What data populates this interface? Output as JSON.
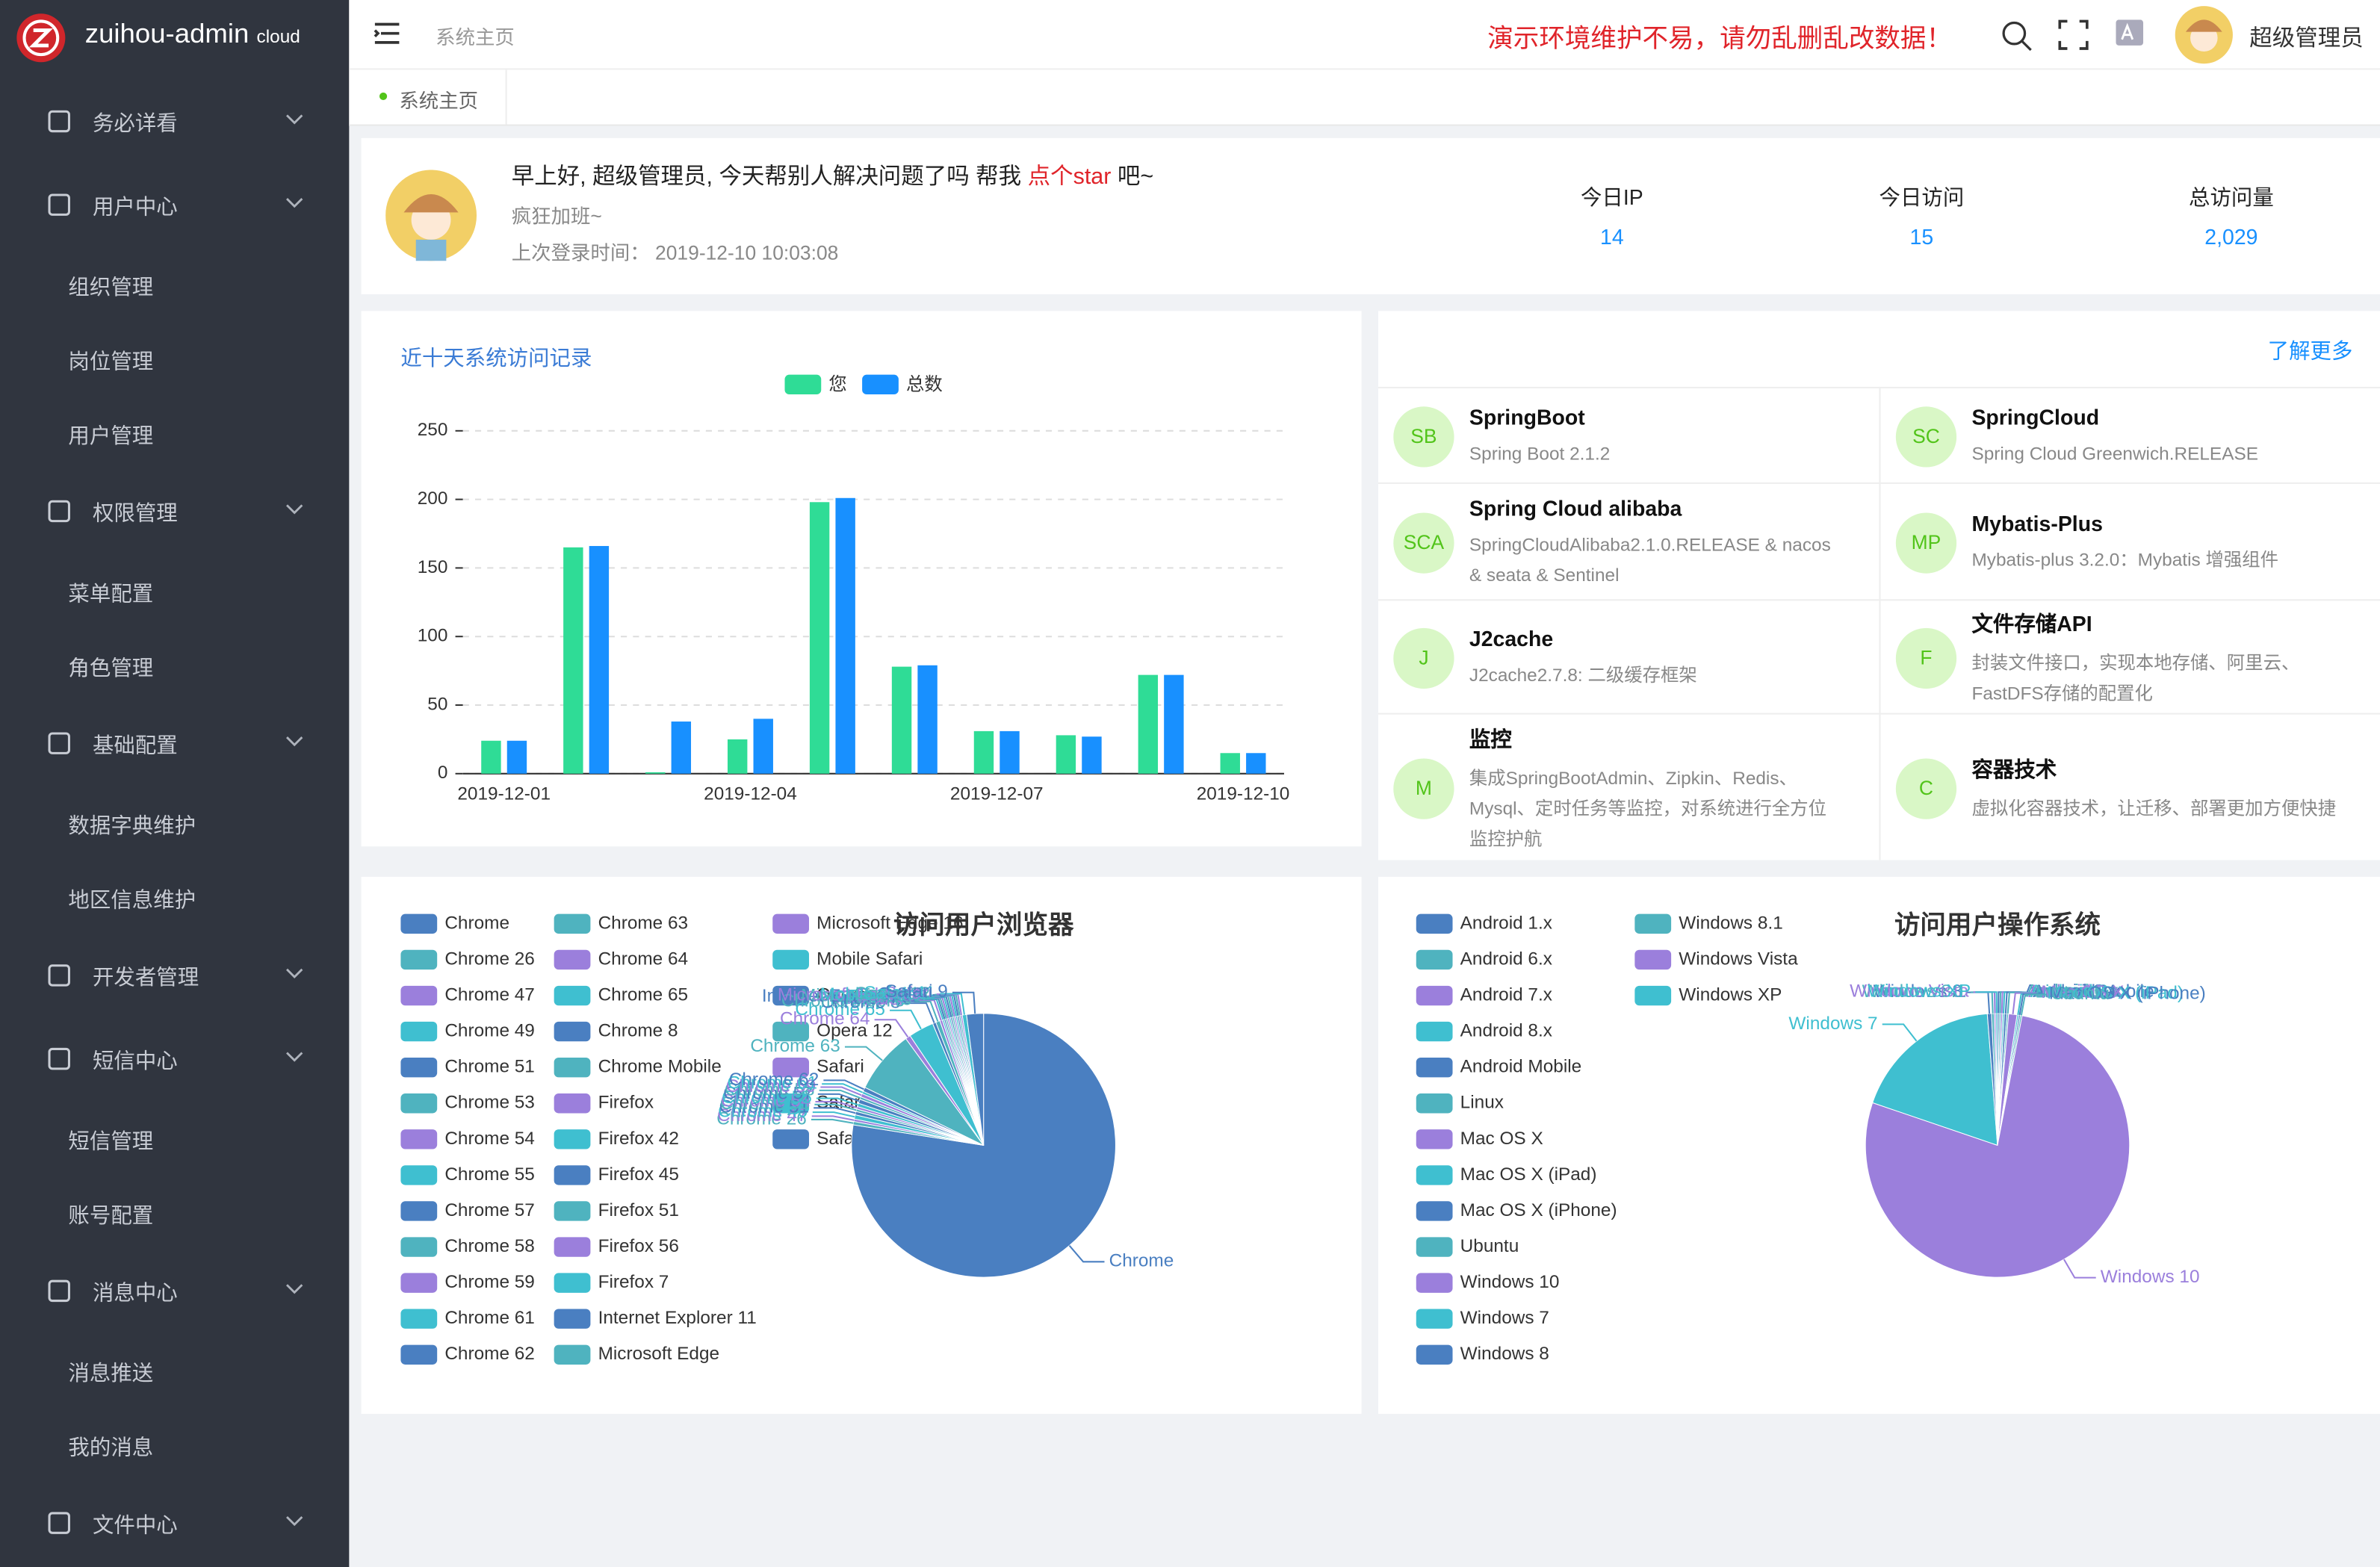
{
  "sidebar": {
    "logo": "zuihou-admin",
    "logo_sub": "cloud",
    "menu": [
      {
        "label": "务必详看",
        "children": []
      },
      {
        "label": "用户中心",
        "children": [
          "组织管理",
          "岗位管理",
          "用户管理"
        ]
      },
      {
        "label": "权限管理",
        "children": [
          "菜单配置",
          "角色管理"
        ]
      },
      {
        "label": "基础配置",
        "children": [
          "数据字典维护",
          "地区信息维护"
        ]
      },
      {
        "label": "开发者管理",
        "children": []
      },
      {
        "label": "短信中心",
        "children": [
          "短信管理",
          "账号配置"
        ]
      },
      {
        "label": "消息中心",
        "children": [
          "消息推送",
          "我的消息"
        ]
      },
      {
        "label": "文件中心",
        "children": []
      }
    ]
  },
  "header": {
    "breadcrumb": "系统主页",
    "notice": "演示环境维护不易，请勿乱删乱改数据！",
    "user": "超级管理员"
  },
  "tabs": [
    "系统主页"
  ],
  "welcome": {
    "greeting": "早上好, 超级管理员, 今天帮别人解决问题了吗 帮我 ",
    "link": "点个star",
    "greeting_end": " 吧~",
    "motto": "疯狂加班~",
    "last_login_label": "上次登录时间：",
    "last_login": "2019-12-10 10:03:08"
  },
  "stats": [
    {
      "label": "今日IP",
      "value": "14"
    },
    {
      "label": "今日访问",
      "value": "15"
    },
    {
      "label": "总访问量",
      "value": "2,029"
    }
  ],
  "tech": {
    "more": "了解更多",
    "items": [
      {
        "badge": "SB",
        "title": "SpringBoot",
        "desc": "Spring Boot 2.1.2"
      },
      {
        "badge": "SC",
        "title": "SpringCloud",
        "desc": "Spring Cloud Greenwich.RELEASE"
      },
      {
        "badge": "SCA",
        "title": "Spring Cloud alibaba",
        "desc": "SpringCloudAlibaba2.1.0.RELEASE & nacos & seata & Sentinel"
      },
      {
        "badge": "MP",
        "title": "Mybatis-Plus",
        "desc": "Mybatis-plus 3.2.0：Mybatis 增强组件"
      },
      {
        "badge": "J",
        "title": "J2cache",
        "desc": "J2cache2.7.8: 二级缓存框架"
      },
      {
        "badge": "F",
        "title": "文件存储API",
        "desc": "封装文件接口，实现本地存储、阿里云、FastDFS存储的配置化"
      },
      {
        "badge": "M",
        "title": "监控",
        "desc": "集成SpringBootAdmin、Zipkin、Redis、Mysql、定时任务等监控，对系统进行全方位监控护航"
      },
      {
        "badge": "C",
        "title": "容器技术",
        "desc": "虚拟化容器技术，让迁移、部署更加方便快捷"
      }
    ]
  },
  "chart_data": [
    {
      "type": "bar",
      "title": "近十天系统访问记录",
      "categories": [
        "2019-12-01",
        null,
        null,
        "2019-12-04",
        null,
        null,
        "2019-12-07",
        null,
        null,
        "2019-12-10"
      ],
      "series": [
        {
          "name": "您",
          "color": "#2fdc96",
          "values": [
            24,
            165,
            1,
            25,
            198,
            78,
            31,
            28,
            72,
            15
          ]
        },
        {
          "name": "总数",
          "color": "#1890ff",
          "values": [
            24,
            166,
            38,
            40,
            201,
            79,
            31,
            27,
            72,
            15
          ]
        }
      ],
      "ylim": [
        0,
        250
      ],
      "yticks": [
        0,
        50,
        100,
        150,
        200,
        250
      ],
      "grid": true
    },
    {
      "type": "pie",
      "title": "访问用户浏览器",
      "palette": [
        "#4a7fc1",
        "#4fb3bf",
        "#9b7fdc",
        "#3fbfd0"
      ],
      "categories": [
        "Chrome",
        "Chrome 26",
        "Chrome 47",
        "Chrome 49",
        "Chrome 51",
        "Chrome 53",
        "Chrome 54",
        "Chrome 55",
        "Chrome 57",
        "Chrome 58",
        "Chrome 59",
        "Chrome 61",
        "Chrome 62",
        "Chrome 63",
        "Chrome 64",
        "Chrome 65",
        "Chrome 8",
        "Chrome Mobile",
        "Firefox",
        "Firefox 42",
        "Firefox 45",
        "Firefox 51",
        "Firefox 56",
        "Firefox 7",
        "Internet Explorer 11",
        "Microsoft Edge",
        "Microsoft Edge 16",
        "Mobile Safari",
        "Opera",
        "Opera 12",
        "Safari",
        "Safari 11",
        "Safari 9"
      ],
      "values": [
        1500,
        8,
        6,
        10,
        8,
        6,
        6,
        8,
        10,
        6,
        8,
        6,
        10,
        150,
        12,
        60,
        8,
        10,
        6,
        4,
        4,
        4,
        4,
        4,
        4,
        4,
        4,
        4,
        4,
        4,
        4,
        10,
        40
      ]
    },
    {
      "type": "pie",
      "title": "访问用户操作系统",
      "palette": [
        "#4a7fc1",
        "#4fb3bf",
        "#9b7fdc",
        "#3fbfd0"
      ],
      "categories": [
        "Android 1.x",
        "Android 6.x",
        "Android 7.x",
        "Android 8.x",
        "Android Mobile",
        "Linux",
        "Mac OS X",
        "Mac OS X (iPad)",
        "Mac OS X (iPhone)",
        "Ubuntu",
        "Windows 10",
        "Windows 7",
        "Windows 8",
        "Windows 8.1",
        "Windows Vista",
        "Windows XP"
      ],
      "values": [
        4,
        4,
        4,
        4,
        6,
        4,
        20,
        4,
        4,
        4,
        1500,
        360,
        10,
        6,
        4,
        4
      ]
    }
  ]
}
